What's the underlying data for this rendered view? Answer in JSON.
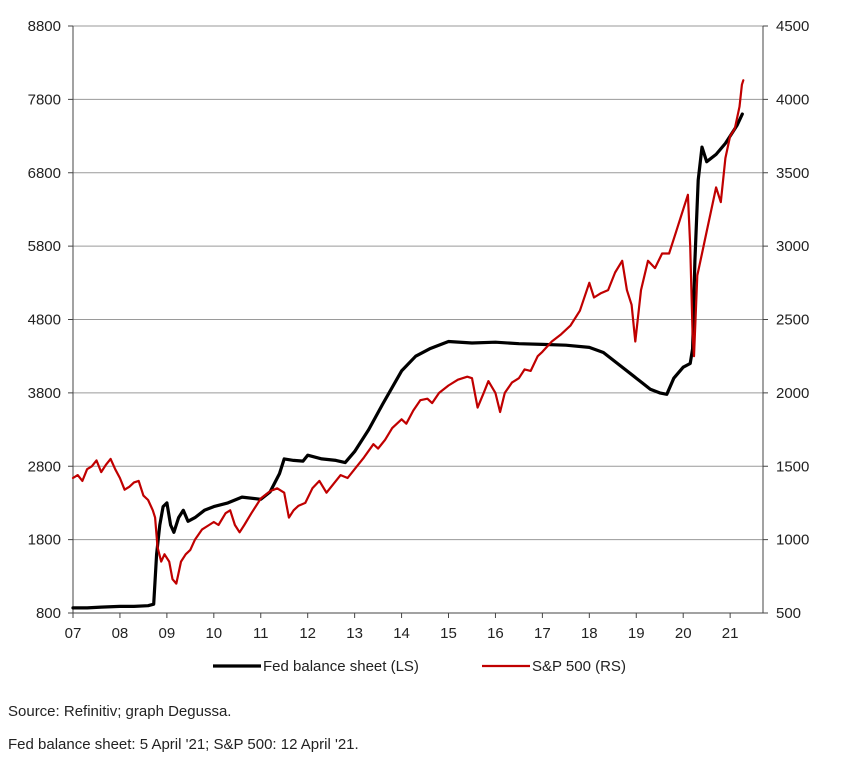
{
  "chart_data": {
    "type": "line",
    "title": "",
    "x_tick_labels": [
      "07",
      "08",
      "09",
      "10",
      "11",
      "12",
      "13",
      "14",
      "15",
      "16",
      "17",
      "18",
      "19",
      "20",
      "21"
    ],
    "x_range": [
      2007.0,
      2021.7
    ],
    "y_left": {
      "range": [
        800,
        8800
      ],
      "ticks": [
        800,
        1800,
        2800,
        3800,
        4800,
        5800,
        6800,
        7800,
        8800
      ]
    },
    "y_right": {
      "range": [
        500,
        4500
      ],
      "ticks": [
        500,
        1000,
        1500,
        2000,
        2500,
        3000,
        3500,
        4000,
        4500
      ]
    },
    "grid": true,
    "legend_position": "bottom",
    "series": [
      {
        "name": "Fed balance sheet (LS)",
        "axis": "left",
        "color": "#000000",
        "points": [
          [
            2007.0,
            870
          ],
          [
            2007.3,
            870
          ],
          [
            2007.6,
            880
          ],
          [
            2008.0,
            890
          ],
          [
            2008.3,
            890
          ],
          [
            2008.6,
            900
          ],
          [
            2008.72,
            920
          ],
          [
            2008.78,
            1600
          ],
          [
            2008.85,
            2000
          ],
          [
            2008.92,
            2250
          ],
          [
            2009.0,
            2300
          ],
          [
            2009.08,
            2000
          ],
          [
            2009.15,
            1900
          ],
          [
            2009.25,
            2100
          ],
          [
            2009.35,
            2200
          ],
          [
            2009.45,
            2050
          ],
          [
            2009.6,
            2100
          ],
          [
            2009.8,
            2200
          ],
          [
            2010.0,
            2250
          ],
          [
            2010.3,
            2300
          ],
          [
            2010.6,
            2380
          ],
          [
            2011.0,
            2350
          ],
          [
            2011.2,
            2450
          ],
          [
            2011.4,
            2700
          ],
          [
            2011.5,
            2900
          ],
          [
            2011.7,
            2880
          ],
          [
            2011.9,
            2870
          ],
          [
            2012.0,
            2950
          ],
          [
            2012.3,
            2900
          ],
          [
            2012.6,
            2880
          ],
          [
            2012.8,
            2850
          ],
          [
            2013.0,
            3000
          ],
          [
            2013.3,
            3300
          ],
          [
            2013.6,
            3650
          ],
          [
            2014.0,
            4100
          ],
          [
            2014.3,
            4300
          ],
          [
            2014.6,
            4400
          ],
          [
            2015.0,
            4500
          ],
          [
            2015.5,
            4480
          ],
          [
            2016.0,
            4490
          ],
          [
            2016.5,
            4470
          ],
          [
            2017.0,
            4460
          ],
          [
            2017.5,
            4450
          ],
          [
            2018.0,
            4420
          ],
          [
            2018.3,
            4350
          ],
          [
            2018.6,
            4200
          ],
          [
            2019.0,
            4000
          ],
          [
            2019.3,
            3850
          ],
          [
            2019.5,
            3800
          ],
          [
            2019.65,
            3780
          ],
          [
            2019.8,
            4000
          ],
          [
            2020.0,
            4150
          ],
          [
            2020.15,
            4200
          ],
          [
            2020.2,
            4400
          ],
          [
            2020.25,
            5600
          ],
          [
            2020.32,
            6700
          ],
          [
            2020.4,
            7150
          ],
          [
            2020.5,
            6950
          ],
          [
            2020.7,
            7050
          ],
          [
            2020.9,
            7200
          ],
          [
            2021.0,
            7300
          ],
          [
            2021.15,
            7450
          ],
          [
            2021.26,
            7600
          ]
        ]
      },
      {
        "name": "S&P 500 (RS)",
        "axis": "right",
        "color": "#c00000",
        "points": [
          [
            2007.0,
            1420
          ],
          [
            2007.1,
            1440
          ],
          [
            2007.2,
            1400
          ],
          [
            2007.3,
            1480
          ],
          [
            2007.4,
            1500
          ],
          [
            2007.5,
            1540
          ],
          [
            2007.6,
            1460
          ],
          [
            2007.7,
            1510
          ],
          [
            2007.8,
            1550
          ],
          [
            2007.9,
            1480
          ],
          [
            2008.0,
            1420
          ],
          [
            2008.1,
            1340
          ],
          [
            2008.2,
            1360
          ],
          [
            2008.3,
            1390
          ],
          [
            2008.4,
            1400
          ],
          [
            2008.5,
            1300
          ],
          [
            2008.6,
            1270
          ],
          [
            2008.7,
            1200
          ],
          [
            2008.75,
            1150
          ],
          [
            2008.8,
            950
          ],
          [
            2008.88,
            850
          ],
          [
            2008.95,
            900
          ],
          [
            2009.05,
            850
          ],
          [
            2009.12,
            730
          ],
          [
            2009.2,
            700
          ],
          [
            2009.3,
            850
          ],
          [
            2009.4,
            900
          ],
          [
            2009.5,
            930
          ],
          [
            2009.6,
            1000
          ],
          [
            2009.75,
            1070
          ],
          [
            2009.9,
            1100
          ],
          [
            2010.0,
            1120
          ],
          [
            2010.1,
            1100
          ],
          [
            2010.25,
            1180
          ],
          [
            2010.35,
            1200
          ],
          [
            2010.45,
            1100
          ],
          [
            2010.55,
            1050
          ],
          [
            2010.65,
            1100
          ],
          [
            2010.8,
            1180
          ],
          [
            2011.0,
            1280
          ],
          [
            2011.2,
            1330
          ],
          [
            2011.35,
            1350
          ],
          [
            2011.5,
            1320
          ],
          [
            2011.6,
            1150
          ],
          [
            2011.7,
            1200
          ],
          [
            2011.8,
            1230
          ],
          [
            2011.95,
            1250
          ],
          [
            2012.1,
            1350
          ],
          [
            2012.25,
            1400
          ],
          [
            2012.4,
            1320
          ],
          [
            2012.55,
            1380
          ],
          [
            2012.7,
            1440
          ],
          [
            2012.85,
            1420
          ],
          [
            2013.0,
            1480
          ],
          [
            2013.2,
            1560
          ],
          [
            2013.4,
            1650
          ],
          [
            2013.5,
            1620
          ],
          [
            2013.65,
            1680
          ],
          [
            2013.8,
            1760
          ],
          [
            2014.0,
            1820
          ],
          [
            2014.1,
            1790
          ],
          [
            2014.25,
            1880
          ],
          [
            2014.4,
            1950
          ],
          [
            2014.55,
            1960
          ],
          [
            2014.65,
            1930
          ],
          [
            2014.8,
            2000
          ],
          [
            2015.0,
            2050
          ],
          [
            2015.2,
            2090
          ],
          [
            2015.4,
            2110
          ],
          [
            2015.5,
            2100
          ],
          [
            2015.62,
            1900
          ],
          [
            2015.75,
            2000
          ],
          [
            2015.85,
            2080
          ],
          [
            2016.0,
            2000
          ],
          [
            2016.1,
            1870
          ],
          [
            2016.2,
            2000
          ],
          [
            2016.35,
            2070
          ],
          [
            2016.5,
            2100
          ],
          [
            2016.62,
            2160
          ],
          [
            2016.75,
            2150
          ],
          [
            2016.9,
            2250
          ],
          [
            2017.0,
            2280
          ],
          [
            2017.2,
            2350
          ],
          [
            2017.4,
            2400
          ],
          [
            2017.6,
            2460
          ],
          [
            2017.8,
            2560
          ],
          [
            2018.0,
            2750
          ],
          [
            2018.1,
            2650
          ],
          [
            2018.25,
            2680
          ],
          [
            2018.4,
            2700
          ],
          [
            2018.55,
            2820
          ],
          [
            2018.7,
            2900
          ],
          [
            2018.8,
            2700
          ],
          [
            2018.9,
            2600
          ],
          [
            2018.98,
            2350
          ],
          [
            2019.1,
            2700
          ],
          [
            2019.25,
            2900
          ],
          [
            2019.4,
            2850
          ],
          [
            2019.55,
            2950
          ],
          [
            2019.7,
            2950
          ],
          [
            2019.85,
            3100
          ],
          [
            2020.0,
            3250
          ],
          [
            2020.1,
            3350
          ],
          [
            2020.15,
            3000
          ],
          [
            2020.2,
            2400
          ],
          [
            2020.23,
            2250
          ],
          [
            2020.3,
            2800
          ],
          [
            2020.4,
            2950
          ],
          [
            2020.5,
            3100
          ],
          [
            2020.6,
            3250
          ],
          [
            2020.7,
            3400
          ],
          [
            2020.8,
            3300
          ],
          [
            2020.9,
            3600
          ],
          [
            2021.0,
            3750
          ],
          [
            2021.1,
            3800
          ],
          [
            2021.2,
            3950
          ],
          [
            2021.25,
            4100
          ],
          [
            2021.28,
            4130
          ]
        ]
      }
    ]
  },
  "notes": {
    "source": "Source: Refinitiv; graph Degussa.",
    "dates": "Fed balance sheet: 5 April '21; S&P 500: 12 April '21."
  }
}
